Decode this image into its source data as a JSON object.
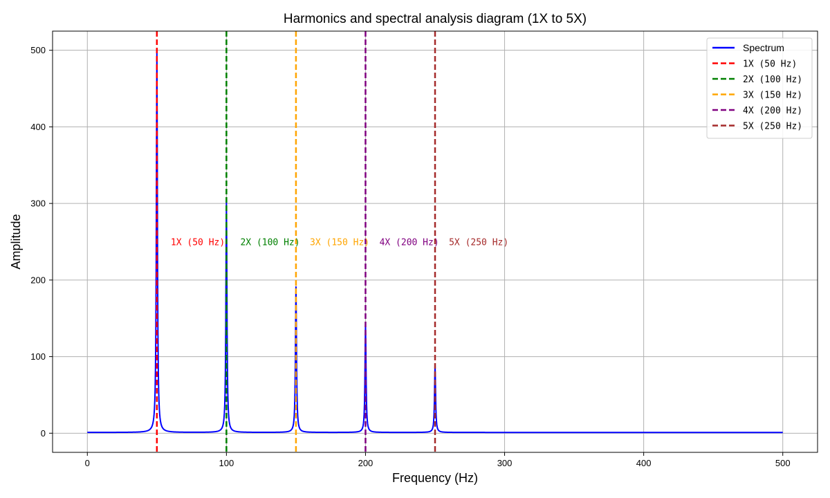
{
  "chart_data": {
    "type": "line",
    "title": "Harmonics and spectral analysis diagram (1X to 5X)",
    "xlabel": "Frequency (Hz)",
    "ylabel": "Amplitude",
    "xlim": [
      -25,
      525
    ],
    "ylim": [
      -25,
      525
    ],
    "x_ticks": [
      0,
      100,
      200,
      300,
      400,
      500
    ],
    "y_ticks": [
      0,
      100,
      200,
      300,
      400,
      500
    ],
    "grid": true,
    "legend_position": "top-right",
    "spectrum": {
      "name": "Spectrum",
      "color": "#0000ff",
      "x_range": [
        0,
        500
      ],
      "baseline": 1,
      "peaks": [
        {
          "freq": 50,
          "amplitude": 500
        },
        {
          "freq": 100,
          "amplitude": 300
        },
        {
          "freq": 150,
          "amplitude": 190
        },
        {
          "freq": 200,
          "amplitude": 140
        },
        {
          "freq": 250,
          "amplitude": 88
        }
      ]
    },
    "harmonic_lines": [
      {
        "name": "1X (50 Hz)",
        "freq": 50,
        "color": "#ff0000"
      },
      {
        "name": "2X (100 Hz)",
        "freq": 100,
        "color": "#008000"
      },
      {
        "name": "3X (150 Hz)",
        "freq": 150,
        "color": "#ffa500"
      },
      {
        "name": "4X (200 Hz)",
        "freq": 200,
        "color": "#800080"
      },
      {
        "name": "5X (250 Hz)",
        "freq": 250,
        "color": "#a52a2a"
      }
    ],
    "annotations": [
      {
        "text": "1X (50 Hz)",
        "x": 60,
        "y": 250,
        "color": "#ff0000"
      },
      {
        "text": "2X (100 Hz)",
        "x": 110,
        "y": 250,
        "color": "#008000"
      },
      {
        "text": "3X (150 Hz)",
        "x": 160,
        "y": 250,
        "color": "#ffa500"
      },
      {
        "text": "4X (200 Hz)",
        "x": 210,
        "y": 250,
        "color": "#800080"
      },
      {
        "text": "5X (250 Hz)",
        "x": 260,
        "y": 250,
        "color": "#a52a2a"
      }
    ]
  }
}
